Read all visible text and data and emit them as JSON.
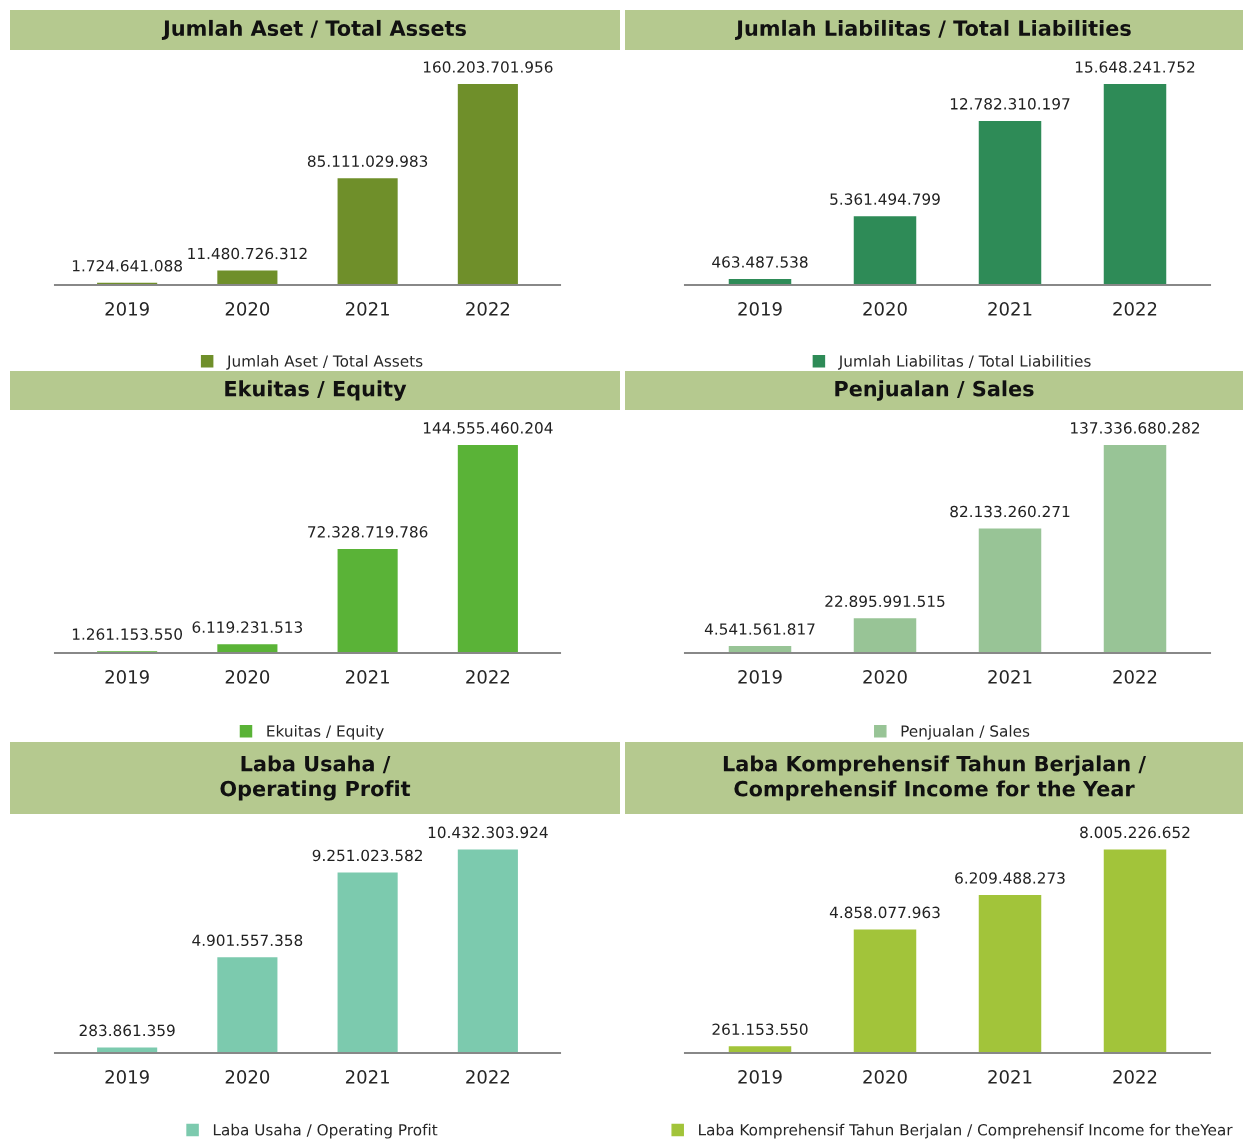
{
  "chart_data": [
    {
      "type": "bar",
      "title": "Jumlah Aset / Total Assets",
      "categories": [
        "2019",
        "2020",
        "2021",
        "2022"
      ],
      "legend": "bottom",
      "series": [
        {
          "name": "Jumlah Aset / Total Assets",
          "color": "#6f8f2a",
          "values": [
            1724641088,
            11480726312,
            85111029983,
            160203701956
          ],
          "value_labels": [
            "1.724.641.088",
            "11.480.726.312",
            "85.111.029.983",
            "160.203.701.956"
          ]
        }
      ]
    },
    {
      "type": "bar",
      "title": "Jumlah Liabilitas / Total Liabilities",
      "categories": [
        "2019",
        "2020",
        "2021",
        "2022"
      ],
      "legend": "bottom",
      "series": [
        {
          "name": "Jumlah Liabilitas / Total Liabilities",
          "color": "#2e8b57",
          "values": [
            463487538,
            5361494799,
            12782310197,
            15648241752
          ],
          "value_labels": [
            "463.487.538",
            "5.361.494.799",
            "12.782.310.197",
            "15.648.241.752"
          ]
        }
      ]
    },
    {
      "type": "bar",
      "title": "Ekuitas / Equity",
      "categories": [
        "2019",
        "2020",
        "2021",
        "2022"
      ],
      "legend": "bottom",
      "series": [
        {
          "name": "Ekuitas / Equity",
          "color": "#5ab337",
          "values": [
            1261153550,
            6119231513,
            72328719786,
            144555460204
          ],
          "value_labels": [
            "1.261.153.550",
            "6.119.231.513",
            "72.328.719.786",
            "144.555.460.204"
          ]
        }
      ]
    },
    {
      "type": "bar",
      "title": "Penjualan / Sales",
      "categories": [
        "2019",
        "2020",
        "2021",
        "2022"
      ],
      "legend": "bottom",
      "series": [
        {
          "name": "Penjualan / Sales",
          "color": "#98c496",
          "values": [
            4541561817,
            22895991515,
            82133260271,
            137336680282
          ],
          "value_labels": [
            "4.541.561.817",
            "22.895.991.515",
            "82.133.260.271",
            "137.336.680.282"
          ]
        }
      ]
    },
    {
      "type": "bar",
      "title": "Laba Usaha /\nOperating Profit",
      "categories": [
        "2019",
        "2020",
        "2021",
        "2022"
      ],
      "legend": "bottom",
      "series": [
        {
          "name": "Laba Usaha / Operating Profit",
          "color": "#7ccaae",
          "values": [
            283861359,
            4901557358,
            9251023582,
            10432303924
          ],
          "value_labels": [
            "283.861.359",
            "4.901.557.358",
            "9.251.023.582",
            "10.432.303.924"
          ]
        }
      ]
    },
    {
      "type": "bar",
      "title": "Laba Komprehensif Tahun Berjalan /\nComprehensif Income for the Year",
      "categories": [
        "2019",
        "2020",
        "2021",
        "2022"
      ],
      "legend": "bottom",
      "series": [
        {
          "name": "Laba Komprehensif Tahun Berjalan / Comprehensif Income for theYear",
          "color": "#a2c43a",
          "values": [
            261153550,
            4858077963,
            6209488273,
            8005226652
          ],
          "value_labels": [
            "261.153.550",
            "4.858.077.963",
            "6.209.488.273",
            "8.005.226.652"
          ]
        }
      ]
    }
  ]
}
